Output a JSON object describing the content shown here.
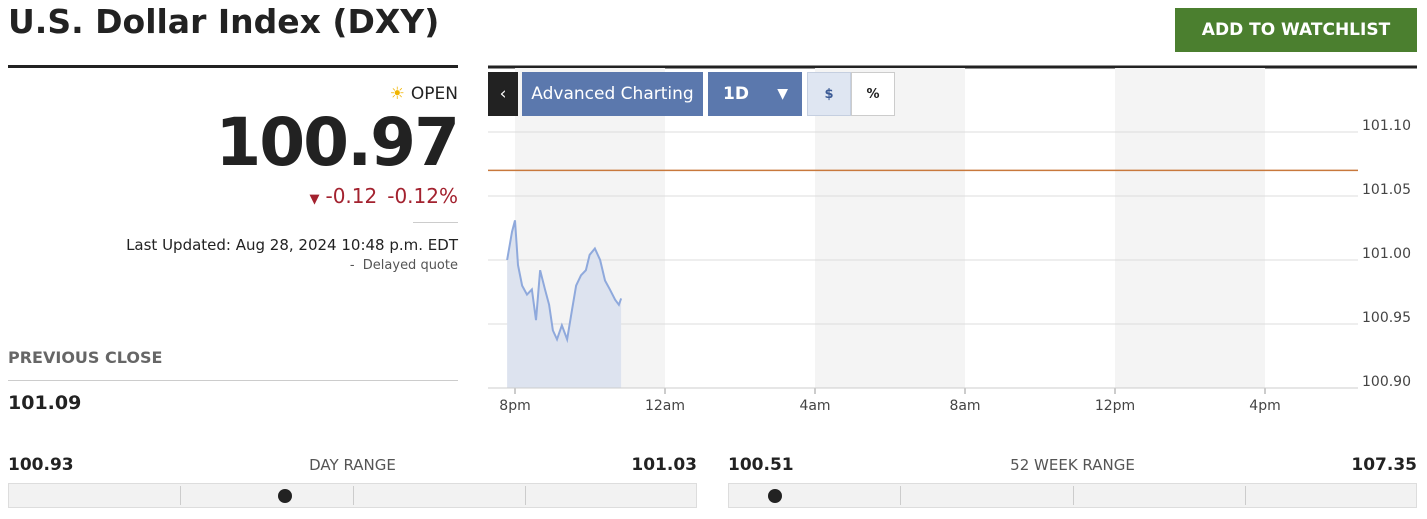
{
  "header": {
    "title": "U.S. Dollar Index (DXY)",
    "watchlist_button": "ADD TO WATCHLIST"
  },
  "quote": {
    "status": "OPEN",
    "price": 100.97,
    "change": -0.12,
    "change_percent": "-0.12%",
    "last_updated": "Last Updated: Aug 28, 2024 10:48 p.m. EDT",
    "delayed": "-  Delayed quote"
  },
  "previous_close": {
    "label": "PREVIOUS CLOSE",
    "value": 101.09
  },
  "day_range": {
    "label": "DAY RANGE",
    "low": 100.93,
    "high": 101.03
  },
  "week52_range": {
    "label": "52 WEEK RANGE",
    "low": 100.51,
    "high": 107.35
  },
  "toolbar": {
    "advanced": "Advanced Charting",
    "interval": "1D",
    "dollar": "$",
    "percent": "%"
  },
  "chart_data": {
    "type": "line",
    "color": "#8fa9dc",
    "area_color": "#dde3ef",
    "x": [
      19.79,
      19.92,
      20.0,
      20.08,
      20.19,
      20.32,
      20.45,
      20.56,
      20.67,
      20.8,
      20.91,
      21.01,
      21.12,
      21.25,
      21.39,
      21.52,
      21.63,
      21.76,
      21.89,
      21.99,
      22.13,
      22.27,
      22.4,
      22.53,
      22.67,
      22.77,
      22.83
    ],
    "values": [
      101.0,
      101.022,
      101.031,
      100.996,
      100.98,
      100.973,
      100.977,
      100.953,
      100.992,
      100.977,
      100.965,
      100.945,
      100.938,
      100.949,
      100.938,
      100.961,
      100.98,
      100.988,
      100.992,
      101.004,
      101.009,
      101.0,
      100.984,
      100.977,
      100.969,
      100.965,
      100.97
    ],
    "xlim": [
      19.28,
      42.48
    ],
    "xticks": [
      {
        "value": 20,
        "label": "8pm"
      },
      {
        "value": 24,
        "label": "12am"
      },
      {
        "value": 28,
        "label": "4am"
      },
      {
        "value": 32,
        "label": "8am"
      },
      {
        "value": 36,
        "label": "12pm"
      },
      {
        "value": 40,
        "label": "4pm"
      }
    ],
    "ylim": [
      100.9,
      101.15
    ],
    "yticks": [
      {
        "value": 100.9,
        "label": "100.90"
      },
      100.95,
      {
        "value": 101.0,
        "label": "101.00"
      },
      101.05,
      {
        "value": 101.1,
        "label": "101.10"
      }
    ],
    "grid": true,
    "reference_line": {
      "value": 101.07,
      "color": "#c8783c"
    }
  }
}
